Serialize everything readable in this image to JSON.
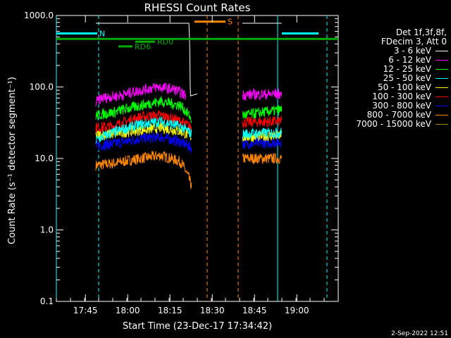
{
  "chart_data": {
    "type": "line",
    "title": "RHESSI Count Rates",
    "xlabel": "Start Time (23-Dec-17 17:34:42)",
    "ylabel": "Count Rate (s⁻¹ detector segment⁻¹)",
    "y_scale": "log",
    "ylim": [
      0.1,
      1000
    ],
    "x_unit": "minutes after 17:34:42",
    "xlim": [
      0,
      100
    ],
    "xticks": [
      {
        "x": 10.3,
        "label": "17:45"
      },
      {
        "x": 25.3,
        "label": "18:00"
      },
      {
        "x": 40.3,
        "label": "18:15"
      },
      {
        "x": 55.3,
        "label": "18:30"
      },
      {
        "x": 70.3,
        "label": "18:45"
      },
      {
        "x": 85.3,
        "label": "19:00"
      }
    ],
    "yticks": [
      {
        "y": 1000,
        "label": "1000.0"
      },
      {
        "y": 100,
        "label": "100.0"
      },
      {
        "y": 10,
        "label": "10.0"
      },
      {
        "y": 1,
        "label": "1.0"
      },
      {
        "y": 0.1,
        "label": "0.1"
      }
    ],
    "legend_header": [
      "Det 1f,3f,8f,",
      "FDecim 3, Att 0"
    ],
    "series": [
      {
        "name": "3 - 6 keV",
        "color": "#ffffff",
        "profile": [
          [
            14,
            780
          ],
          [
            47,
            780
          ],
          [
            47.5,
            75
          ],
          [
            50,
            80
          ]
        ],
        "gap_profile": [
          [
            66,
            780
          ],
          [
            80,
            780
          ]
        ]
      },
      {
        "name": "6 - 12 keV",
        "color": "#ff00ff",
        "profile": [
          [
            14,
            60
          ],
          [
            16,
            70
          ],
          [
            22,
            75
          ],
          [
            30,
            90
          ],
          [
            36,
            100
          ],
          [
            42,
            92
          ],
          [
            46,
            75
          ]
        ],
        "gap_profile": [
          [
            66,
            78
          ],
          [
            80,
            80
          ]
        ]
      },
      {
        "name": "12 - 25 keV",
        "color": "#00ff00",
        "profile": [
          [
            14,
            40
          ],
          [
            20,
            44
          ],
          [
            30,
            55
          ],
          [
            37,
            63
          ],
          [
            44,
            55
          ],
          [
            48,
            35
          ]
        ],
        "gap_profile": [
          [
            66,
            40
          ],
          [
            80,
            48
          ]
        ]
      },
      {
        "name": "25 - 50 keV",
        "color": "#00ffff",
        "profile": [
          [
            14,
            18
          ],
          [
            20,
            23
          ],
          [
            30,
            30
          ],
          [
            37,
            33
          ],
          [
            44,
            28
          ],
          [
            48,
            22
          ]
        ],
        "gap_profile": [
          [
            66,
            22
          ],
          [
            80,
            23
          ]
        ]
      },
      {
        "name": "50 - 100 keV",
        "color": "#ffff00",
        "profile": [
          [
            14,
            21
          ],
          [
            20,
            22
          ],
          [
            30,
            25
          ],
          [
            37,
            27
          ],
          [
            44,
            24
          ],
          [
            48,
            20
          ]
        ],
        "gap_profile": [
          [
            66,
            20
          ],
          [
            80,
            21
          ]
        ]
      },
      {
        "name": "100 - 300 keV",
        "color": "#ff0000",
        "profile": [
          [
            14,
            27
          ],
          [
            20,
            28
          ],
          [
            30,
            38
          ],
          [
            37,
            40
          ],
          [
            44,
            33
          ],
          [
            48,
            27
          ]
        ],
        "gap_profile": [
          [
            66,
            32
          ],
          [
            80,
            33
          ]
        ]
      },
      {
        "name": "300 - 800 keV",
        "color": "#0000ff",
        "profile": [
          [
            14,
            15
          ],
          [
            20,
            16
          ],
          [
            30,
            19
          ],
          [
            37,
            20
          ],
          [
            44,
            17
          ],
          [
            48,
            14
          ]
        ],
        "gap_profile": [
          [
            66,
            16
          ],
          [
            80,
            17
          ]
        ]
      },
      {
        "name": "800 - 7000 keV",
        "color": "#ff8800",
        "profile": [
          [
            14,
            8
          ],
          [
            20,
            8.5
          ],
          [
            30,
            10
          ],
          [
            37,
            11
          ],
          [
            44,
            9
          ],
          [
            48,
            4
          ]
        ],
        "gap_profile": [
          [
            66,
            10
          ],
          [
            80,
            10
          ]
        ]
      },
      {
        "name": "7000 - 15000 keV",
        "color": "#998800",
        "profile": [],
        "gap_profile": []
      }
    ],
    "flags": [
      {
        "label": "N",
        "color": "#00ffff",
        "segments": [
          [
            0,
            14.5
          ],
          [
            80,
            93
          ]
        ],
        "y": 560
      },
      {
        "label": "S",
        "color": "#ff8800",
        "segments": [
          [
            49,
            60
          ]
        ],
        "y": 820
      },
      {
        "label": "RD0",
        "color": "#00aa00",
        "segments": [
          [
            28,
            35
          ]
        ],
        "y": 430
      },
      {
        "label": "RD6",
        "color": "#00aa00",
        "segments": [
          [
            22,
            27
          ]
        ],
        "y": 370
      },
      {
        "label": "",
        "color": "#00aa00",
        "segments": [
          [
            0,
            100
          ]
        ],
        "y": 470
      }
    ],
    "vlines": [
      {
        "x": 0,
        "color": "#00ffff",
        "style": "solid"
      },
      {
        "x": 15,
        "color": "#00ffff",
        "style": "dashed"
      },
      {
        "x": 78.5,
        "color": "#00ffff",
        "style": "solid"
      },
      {
        "x": 96,
        "color": "#00ffff",
        "style": "dashed"
      },
      {
        "x": 53.5,
        "color": "#ff8800",
        "style": "dashed"
      },
      {
        "x": 64.5,
        "color": "#ff8800",
        "style": "dashed"
      }
    ]
  },
  "timestamp": "2-Sep-2022 12:51"
}
